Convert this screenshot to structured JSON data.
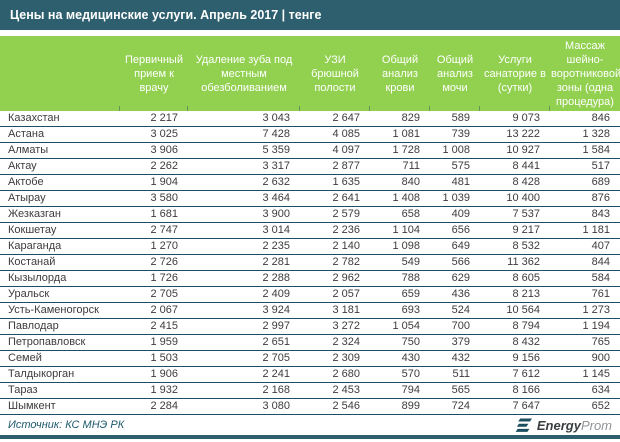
{
  "title": "Цены на медицинские услуги. Апрель 2017 | тенге",
  "colors": {
    "titlebar_teal": "#2E5F6E",
    "header_green": "#92D050",
    "row_line": "#1D4E63",
    "body_text": "#3C3C3C",
    "source_text": "#1E5A6E",
    "logo_icon": "#1D4F60",
    "logo_gray": "#909497"
  },
  "footer": {
    "source": "Источник: КС МНЭ РК",
    "logo_bold": "Energy",
    "logo_light": "Prom"
  },
  "chart_data": {
    "type": "table",
    "title": "Цены на медицинские услуги. Апрель 2017 | тенге",
    "unit": "тенге",
    "region_header": "",
    "columns": [
      "Первичный прием к врачу",
      "Удаление зуба под местным обезболиванием",
      "УЗИ брюшной полости",
      "Общий анализ крови",
      "Общий анализ мочи",
      "Услуги санаторие в (сутки)",
      "Массаж шейно-воротниковой зоны (одна процедура)"
    ],
    "rows": [
      {
        "region": "Казахстан",
        "values": [
          2217,
          3043,
          2647,
          829,
          589,
          9073,
          846
        ]
      },
      {
        "region": "Астана",
        "values": [
          3025,
          7428,
          4085,
          1081,
          739,
          13222,
          1328
        ]
      },
      {
        "region": "Алматы",
        "values": [
          3906,
          5359,
          4097,
          1728,
          1008,
          10927,
          1584
        ]
      },
      {
        "region": "Актау",
        "values": [
          2262,
          3317,
          2877,
          711,
          575,
          8441,
          517
        ]
      },
      {
        "region": "Актобе",
        "values": [
          1904,
          2632,
          1635,
          840,
          481,
          8428,
          689
        ]
      },
      {
        "region": "Атырау",
        "values": [
          3580,
          3464,
          2641,
          1408,
          1039,
          10400,
          876
        ]
      },
      {
        "region": "Жезказган",
        "values": [
          1681,
          3900,
          2579,
          658,
          409,
          7537,
          843
        ]
      },
      {
        "region": "Кокшетау",
        "values": [
          2747,
          3014,
          2236,
          1104,
          656,
          9217,
          1181
        ]
      },
      {
        "region": "Караганда",
        "values": [
          1270,
          2235,
          2140,
          1098,
          649,
          8532,
          407
        ]
      },
      {
        "region": "Костанай",
        "values": [
          2726,
          2281,
          2782,
          549,
          566,
          11362,
          844
        ]
      },
      {
        "region": "Кызылорда",
        "values": [
          1726,
          2288,
          2962,
          788,
          629,
          8605,
          584
        ]
      },
      {
        "region": "Уральск",
        "values": [
          2705,
          2409,
          2057,
          659,
          436,
          8213,
          761
        ]
      },
      {
        "region": "Усть-Каменогорск",
        "values": [
          2067,
          3924,
          3181,
          693,
          524,
          10564,
          1273
        ]
      },
      {
        "region": "Павлодар",
        "values": [
          2415,
          2997,
          3272,
          1054,
          700,
          8794,
          1194
        ]
      },
      {
        "region": "Петропавловск",
        "values": [
          1959,
          2651,
          2324,
          750,
          379,
          8432,
          765
        ]
      },
      {
        "region": "Семей",
        "values": [
          1503,
          2705,
          2309,
          430,
          432,
          9156,
          900
        ]
      },
      {
        "region": "Талдыкорган",
        "values": [
          1906,
          2241,
          2680,
          570,
          511,
          7612,
          1145
        ]
      },
      {
        "region": "Тараз",
        "values": [
          1932,
          2168,
          2453,
          794,
          565,
          8166,
          634
        ]
      },
      {
        "region": "Шымкент",
        "values": [
          2284,
          3080,
          2546,
          899,
          724,
          7647,
          652
        ]
      }
    ],
    "source": "Источник: КС МНЭ РК",
    "layout": {
      "thousands_separator": "space",
      "grid": "horizontal-lines",
      "header_align": "center",
      "values_align": "right"
    }
  }
}
